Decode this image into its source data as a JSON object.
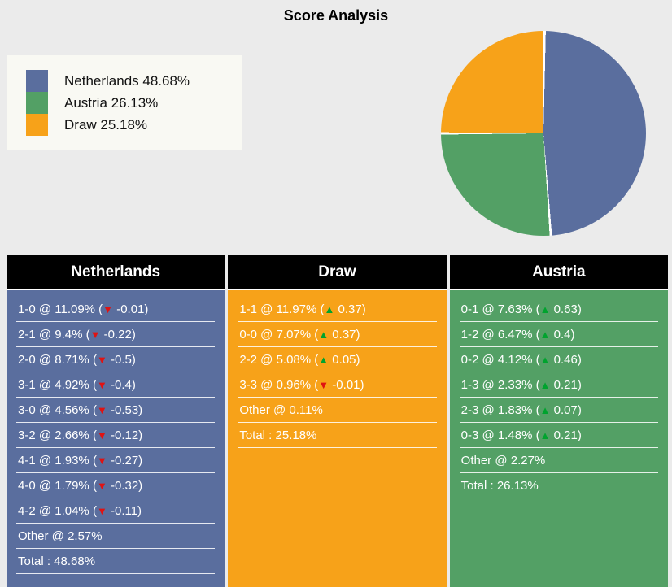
{
  "title": "Score Analysis",
  "icons": {
    "up": "▲",
    "down": "▼"
  },
  "colors": {
    "background": "#ebebeb",
    "legend_background": "#f9f9f3",
    "netherlands": "#5a6e9e",
    "austria": "#53a065",
    "draw": "#f7a219",
    "up_arrow": "#00a32e",
    "down_arrow": "#e01212",
    "header_background": "#000000",
    "header_text": "#ffffff",
    "row_text": "#ffffff"
  },
  "legend": [
    {
      "label": "Netherlands 48.68%",
      "color": "#5a6e9e"
    },
    {
      "label": "Austria 26.13%",
      "color": "#53a065"
    },
    {
      "label": "Draw 25.18%",
      "color": "#f7a219"
    }
  ],
  "chart_data": {
    "type": "pie",
    "title": "Score Analysis",
    "legend_position": "left",
    "start_angle_deg": 0,
    "slices": [
      {
        "label": "Netherlands",
        "value": 48.68,
        "color": "#5a6e9e"
      },
      {
        "label": "Austria",
        "value": 26.13,
        "color": "#53a065"
      },
      {
        "label": "Draw",
        "value": 25.18,
        "color": "#f7a219"
      }
    ]
  },
  "columns": [
    {
      "key": "netherlands",
      "header": "Netherlands",
      "color": "#5a6e9e",
      "rows": [
        {
          "label": "1-0 @ 11.09%",
          "arrow": "down",
          "delta": "-0.01"
        },
        {
          "label": "2-1 @ 9.4%",
          "arrow": "down",
          "delta": "-0.22"
        },
        {
          "label": "2-0 @ 8.71%",
          "arrow": "down",
          "delta": "-0.5"
        },
        {
          "label": "3-1 @ 4.92%",
          "arrow": "down",
          "delta": "-0.4"
        },
        {
          "label": "3-0 @ 4.56%",
          "arrow": "down",
          "delta": "-0.53"
        },
        {
          "label": "3-2 @ 2.66%",
          "arrow": "down",
          "delta": "-0.12"
        },
        {
          "label": "4-1 @ 1.93%",
          "arrow": "down",
          "delta": "-0.27"
        },
        {
          "label": "4-0 @ 1.79%",
          "arrow": "down",
          "delta": "-0.32"
        },
        {
          "label": "4-2 @ 1.04%",
          "arrow": "down",
          "delta": "-0.11"
        },
        {
          "label": "Other @ 2.57%"
        },
        {
          "label": "Total : 48.68%"
        }
      ]
    },
    {
      "key": "draw",
      "header": "Draw",
      "color": "#f7a219",
      "rows": [
        {
          "label": "1-1 @ 11.97%",
          "arrow": "up",
          "delta": "0.37"
        },
        {
          "label": "0-0 @ 7.07%",
          "arrow": "up",
          "delta": "0.37"
        },
        {
          "label": "2-2 @ 5.08%",
          "arrow": "up",
          "delta": "0.05"
        },
        {
          "label": "3-3 @ 0.96%",
          "arrow": "down",
          "delta": "-0.01"
        },
        {
          "label": "Other @ 0.11%"
        },
        {
          "label": "Total : 25.18%"
        }
      ]
    },
    {
      "key": "austria",
      "header": "Austria",
      "color": "#53a065",
      "rows": [
        {
          "label": "0-1 @ 7.63%",
          "arrow": "up",
          "delta": "0.63"
        },
        {
          "label": "1-2 @ 6.47%",
          "arrow": "up",
          "delta": "0.4"
        },
        {
          "label": "0-2 @ 4.12%",
          "arrow": "up",
          "delta": "0.46"
        },
        {
          "label": "1-3 @ 2.33%",
          "arrow": "up",
          "delta": "0.21"
        },
        {
          "label": "2-3 @ 1.83%",
          "arrow": "up",
          "delta": "0.07"
        },
        {
          "label": "0-3 @ 1.48%",
          "arrow": "up",
          "delta": "0.21"
        },
        {
          "label": "Other @ 2.27%"
        },
        {
          "label": "Total : 26.13%"
        }
      ]
    }
  ]
}
